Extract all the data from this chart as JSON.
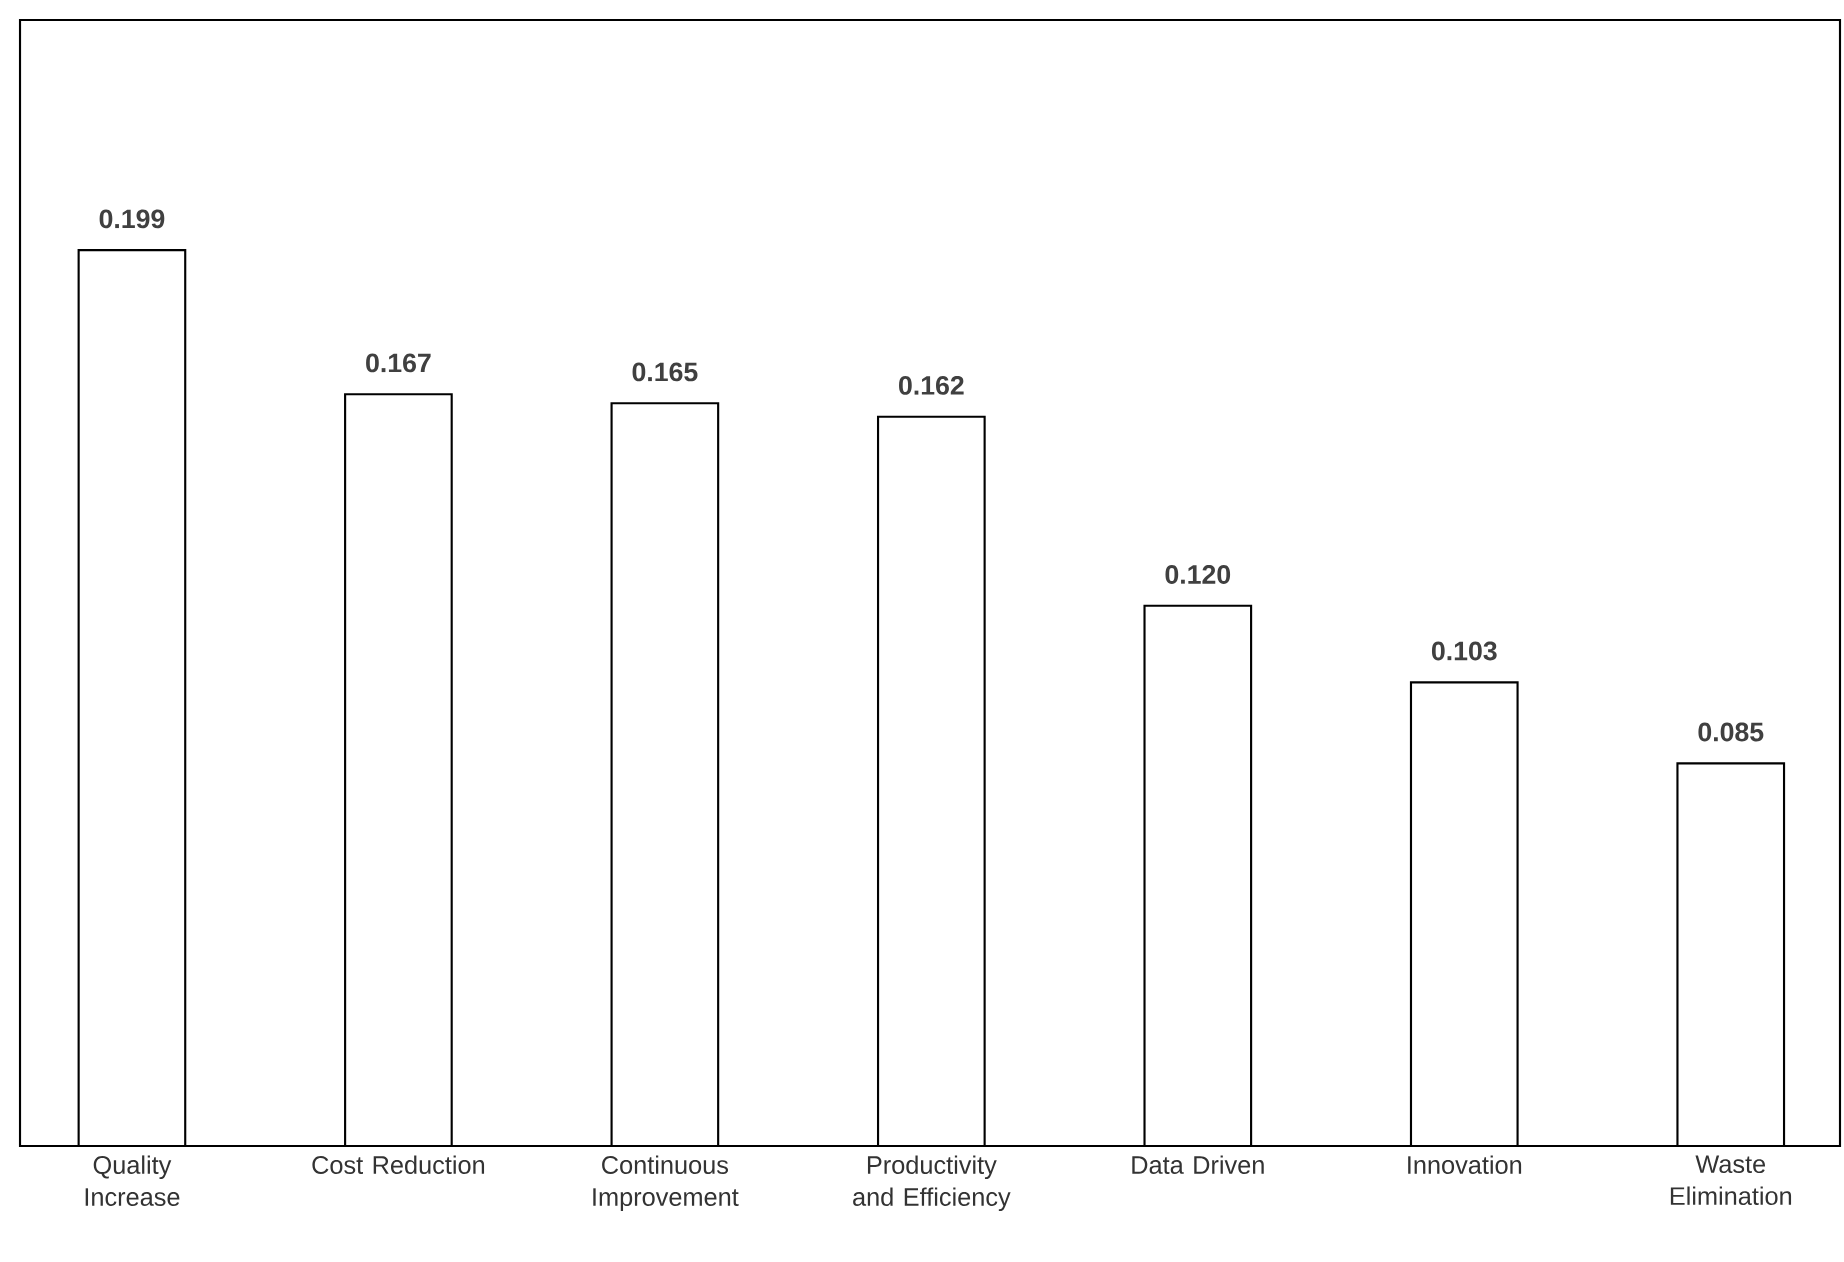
{
  "chart_data": {
    "type": "bar",
    "categories": [
      "Quality Increase",
      "Cost Reduction",
      "Continuous Improvement",
      "Productivity and Efficiency",
      "Data Driven",
      "Innovation",
      "Waste Elimination"
    ],
    "values": [
      0.199,
      0.167,
      0.165,
      0.162,
      0.12,
      0.103,
      0.085
    ],
    "value_labels": [
      "0.199",
      "0.167",
      "0.165",
      "0.162",
      "0.120",
      "0.103",
      "0.085"
    ],
    "color": "#ffffff"
  }
}
